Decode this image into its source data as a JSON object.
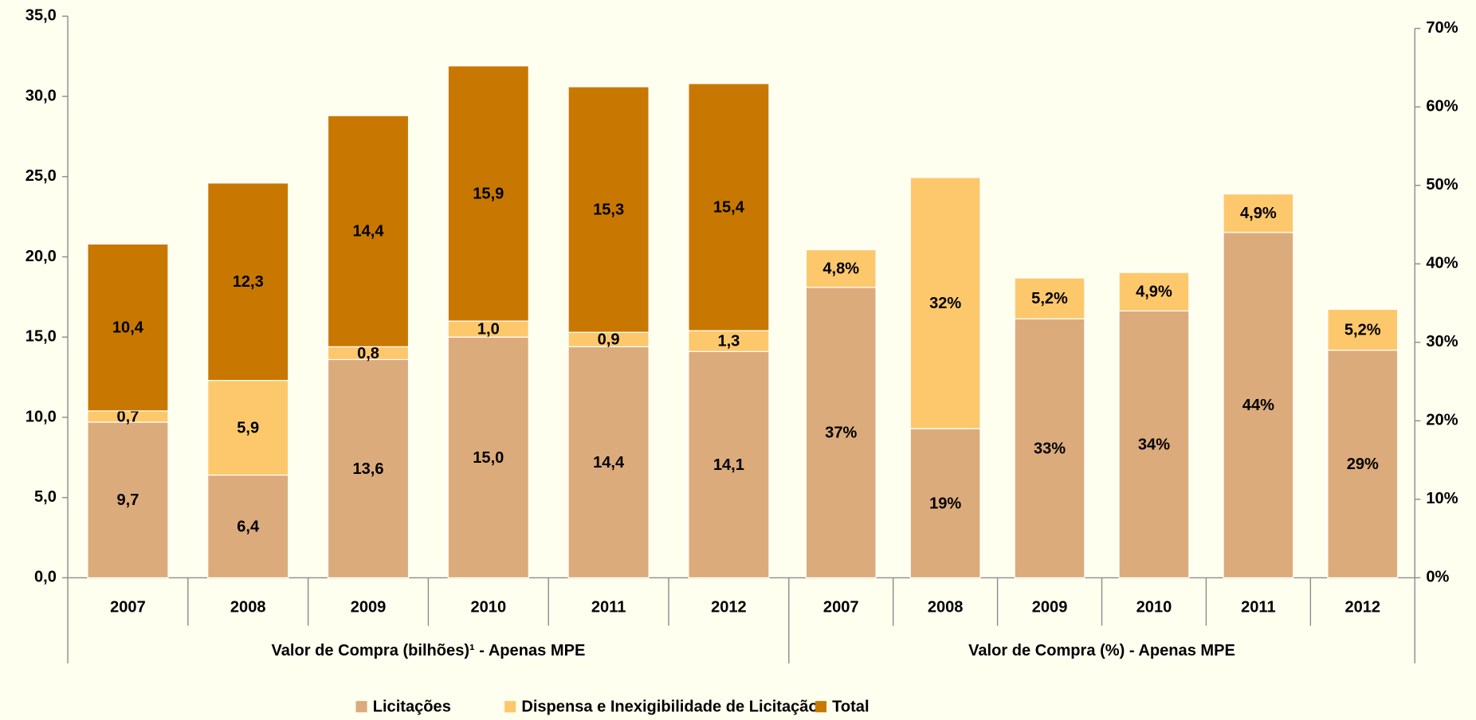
{
  "chart_data": [
    {
      "type": "bar",
      "stacked": true,
      "xlabel": "Valor de Compra (bilhões)¹ - Apenas MPE",
      "categories": [
        "2007",
        "2008",
        "2009",
        "2010",
        "2011",
        "2012"
      ],
      "series": [
        {
          "name": "Licitações",
          "color": "#dcab7b",
          "values": [
            9.7,
            6.4,
            13.6,
            15.0,
            14.4,
            14.1
          ],
          "value_labels": [
            "9,7",
            "6,4",
            "13,6",
            "15,0",
            "14,4",
            "14,1"
          ]
        },
        {
          "name": "Dispensa e Inexigibilidade de Licitação",
          "color": "#fdc86b",
          "values": [
            0.7,
            5.9,
            0.8,
            1.0,
            0.9,
            1.3
          ],
          "value_labels": [
            "0,7",
            "5,9",
            "0,8",
            "1,0",
            "0,9",
            "1,3"
          ]
        },
        {
          "name": "Total",
          "color": "#c87800",
          "values": [
            10.4,
            12.3,
            14.4,
            15.9,
            15.3,
            15.4
          ],
          "value_labels": [
            "10,4",
            "12,3",
            "14,4",
            "15,9",
            "15,3",
            "15,4"
          ]
        }
      ],
      "ylim": [
        0,
        35
      ],
      "yticks": [
        {
          "value": 0,
          "label": "0,0"
        },
        {
          "value": 5,
          "label": "5,0"
        },
        {
          "value": 10,
          "label": "10,0"
        },
        {
          "value": 15,
          "label": "15,0"
        },
        {
          "value": 20,
          "label": "20,0"
        },
        {
          "value": 25,
          "label": "25,0"
        },
        {
          "value": 30,
          "label": "30,0"
        },
        {
          "value": 35,
          "label": "35,0"
        }
      ],
      "legend": "bottom"
    },
    {
      "type": "bar",
      "stacked": true,
      "xlabel": "Valor de Compra (%) - Apenas MPE",
      "categories": [
        "2007",
        "2008",
        "2009",
        "2010",
        "2011",
        "2012"
      ],
      "series": [
        {
          "color": "#dcab7b",
          "axis": "y2",
          "values": [
            37,
            19,
            33,
            34,
            44,
            29
          ],
          "value_labels": [
            "37%",
            "19%",
            "33%",
            "34%",
            "44%",
            "29%"
          ]
        },
        {
          "color": "#fdc86b",
          "axis": "y2",
          "values": [
            4.8,
            32,
            5.2,
            4.9,
            4.9,
            5.2
          ],
          "value_labels": [
            "4,8%",
            "32%",
            "5,2%",
            "4,9%",
            "4,9%",
            "5,2%"
          ]
        }
      ],
      "y2lim": [
        0,
        70
      ],
      "y2ticks": [
        {
          "value": 0,
          "label": "0%"
        },
        {
          "value": 10,
          "label": "10%"
        },
        {
          "value": 20,
          "label": "20%"
        },
        {
          "value": 30,
          "label": "30%"
        },
        {
          "value": 40,
          "label": "40%"
        },
        {
          "value": 50,
          "label": "50%"
        },
        {
          "value": 60,
          "label": "60%"
        },
        {
          "value": 70,
          "label": "70%"
        }
      ]
    }
  ]
}
